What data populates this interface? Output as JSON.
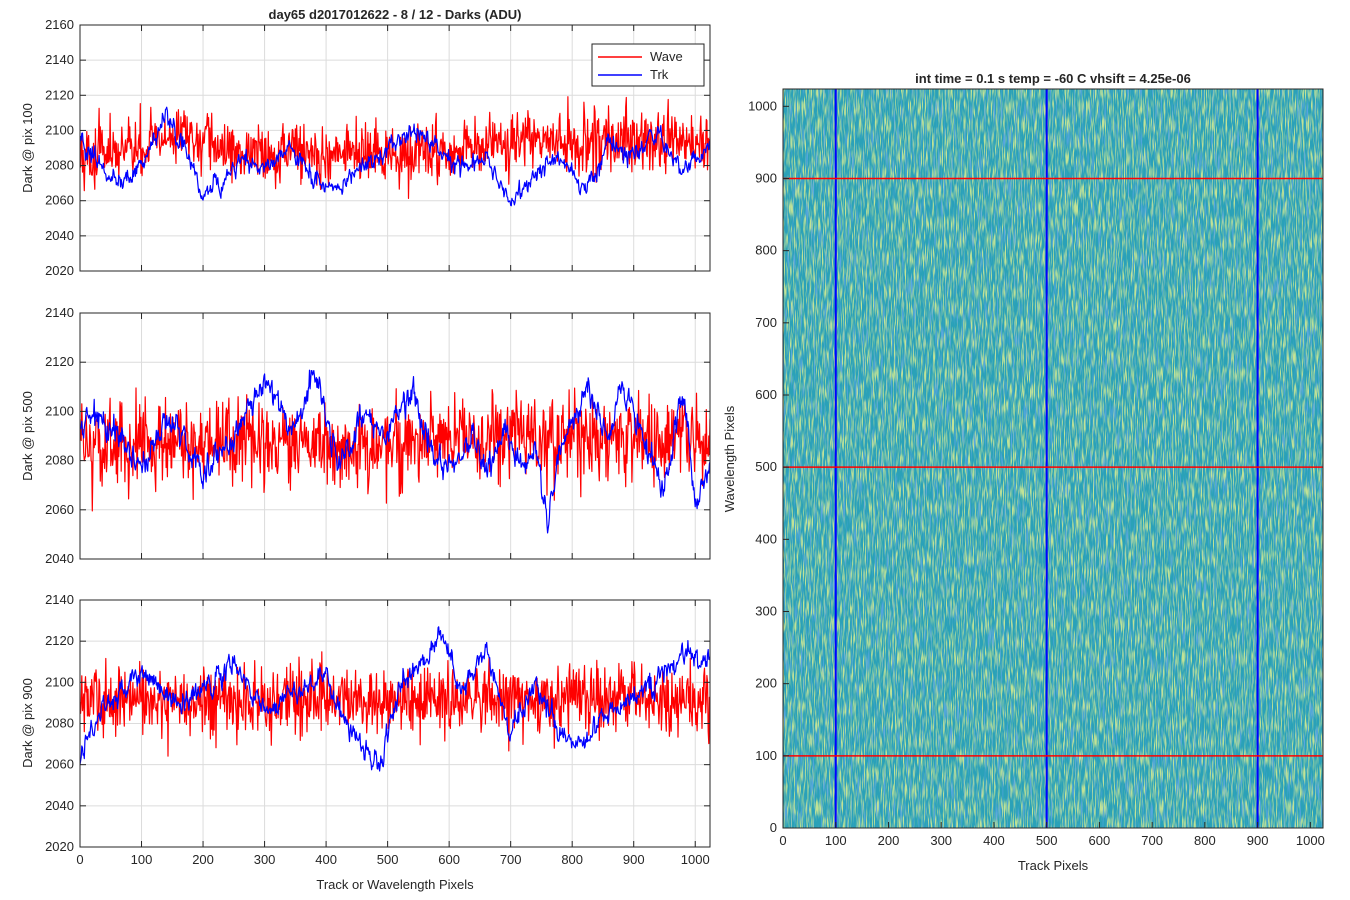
{
  "figure_title": "day65 d2017012622 - 8 / 12 - Darks (ADU)",
  "chart_data": [
    {
      "type": "line",
      "title": "day65 d2017012622 - 8 / 12 - Darks (ADU)",
      "xlabel": "",
      "ylabel": "Dark @ pix 100",
      "xlim": [
        0,
        1024
      ],
      "ylim": [
        2020,
        2160
      ],
      "xticks": [
        0,
        100,
        200,
        300,
        400,
        500,
        600,
        700,
        800,
        900,
        1000
      ],
      "yticks": [
        2020,
        2040,
        2060,
        2080,
        2100,
        2120,
        2140,
        2160
      ],
      "grid": true,
      "legend": {
        "position": "top-right",
        "entries": [
          "Wave",
          "Trk"
        ]
      },
      "series": [
        {
          "name": "Wave",
          "color": "#ff0000",
          "style": "noise",
          "x": [
            0,
            100,
            150,
            250,
            300,
            350,
            400,
            450,
            500,
            550,
            600,
            650,
            700,
            750,
            800,
            850,
            900,
            950,
            1024
          ],
          "values": [
            2085,
            2090,
            2098,
            2088,
            2087,
            2090,
            2085,
            2088,
            2083,
            2088,
            2087,
            2090,
            2092,
            2095,
            2093,
            2095,
            2092,
            2094,
            2090
          ]
        },
        {
          "name": "Trk",
          "color": "#0000ff",
          "style": "smooth",
          "x": [
            0,
            40,
            80,
            110,
            140,
            170,
            200,
            230,
            260,
            300,
            340,
            380,
            420,
            460,
            500,
            540,
            580,
            620,
            660,
            700,
            740,
            780,
            820,
            860,
            900,
            940,
            970,
            1000,
            1024
          ],
          "values": [
            2095,
            2075,
            2072,
            2085,
            2108,
            2090,
            2065,
            2070,
            2085,
            2078,
            2092,
            2072,
            2066,
            2078,
            2090,
            2100,
            2092,
            2078,
            2085,
            2058,
            2075,
            2085,
            2066,
            2092,
            2085,
            2098,
            2078,
            2082,
            2090
          ]
        }
      ]
    },
    {
      "type": "line",
      "title": "",
      "xlabel": "",
      "ylabel": "Dark @ pix 500",
      "xlim": [
        0,
        1024
      ],
      "ylim": [
        2040,
        2140
      ],
      "xticks": [
        0,
        100,
        200,
        300,
        400,
        500,
        600,
        700,
        800,
        900,
        1000
      ],
      "yticks": [
        2040,
        2060,
        2080,
        2100,
        2120,
        2140
      ],
      "grid": true,
      "series": [
        {
          "name": "Wave",
          "color": "#ff0000",
          "style": "noise",
          "x": [
            0,
            100,
            200,
            300,
            400,
            500,
            600,
            700,
            800,
            900,
            1024
          ],
          "values": [
            2085,
            2088,
            2087,
            2086,
            2085,
            2086,
            2088,
            2090,
            2090,
            2088,
            2087
          ]
        },
        {
          "name": "Trk",
          "color": "#0000ff",
          "style": "smooth",
          "x": [
            0,
            30,
            60,
            100,
            150,
            200,
            250,
            300,
            350,
            380,
            420,
            460,
            500,
            540,
            580,
            620,
            640,
            660,
            690,
            720,
            740,
            760,
            780,
            820,
            860,
            880,
            900,
            950,
            980,
            1000,
            1024
          ],
          "values": [
            2090,
            2100,
            2090,
            2078,
            2098,
            2075,
            2090,
            2110,
            2092,
            2118,
            2078,
            2098,
            2090,
            2110,
            2078,
            2080,
            2090,
            2075,
            2092,
            2078,
            2085,
            2055,
            2080,
            2110,
            2090,
            2112,
            2100,
            2068,
            2108,
            2062,
            2078
          ]
        }
      ]
    },
    {
      "type": "line",
      "title": "",
      "xlabel": "Track or Wavelength Pixels",
      "ylabel": "Dark @ pix 900",
      "xlim": [
        0,
        1024
      ],
      "ylim": [
        2020,
        2140
      ],
      "xticks": [
        0,
        100,
        200,
        300,
        400,
        500,
        600,
        700,
        800,
        900,
        1000
      ],
      "yticks": [
        2020,
        2040,
        2060,
        2080,
        2100,
        2120,
        2140
      ],
      "grid": true,
      "series": [
        {
          "name": "Wave",
          "color": "#ff0000",
          "style": "noise",
          "x": [
            0,
            100,
            200,
            300,
            400,
            500,
            600,
            700,
            800,
            900,
            1024
          ],
          "values": [
            2090,
            2092,
            2090,
            2091,
            2092,
            2090,
            2092,
            2091,
            2092,
            2093,
            2092
          ]
        },
        {
          "name": "Trk",
          "color": "#0000ff",
          "style": "smooth",
          "x": [
            0,
            20,
            60,
            100,
            150,
            200,
            250,
            300,
            350,
            400,
            430,
            460,
            490,
            520,
            560,
            590,
            620,
            660,
            700,
            740,
            780,
            810,
            860,
            900,
            940,
            980,
            1024
          ],
          "values": [
            2060,
            2080,
            2095,
            2105,
            2090,
            2095,
            2110,
            2085,
            2095,
            2105,
            2080,
            2068,
            2060,
            2100,
            2110,
            2125,
            2095,
            2115,
            2075,
            2100,
            2075,
            2068,
            2085,
            2092,
            2100,
            2115,
            2110
          ]
        }
      ]
    },
    {
      "type": "heatmap",
      "title": "int time = 0.1 s   temp = -60 C   vhsift = 4.25e-06",
      "xlabel": "Track Pixels",
      "ylabel": "Wavelength Pixels",
      "xlim": [
        0,
        1024
      ],
      "ylim": [
        0,
        1024
      ],
      "xticks": [
        0,
        100,
        200,
        300,
        400,
        500,
        600,
        700,
        800,
        900,
        1000
      ],
      "yticks": [
        0,
        100,
        200,
        300,
        400,
        500,
        600,
        700,
        800,
        900,
        1000
      ],
      "grid": false,
      "colors": {
        "base": "#2aa1b8",
        "high": "#8ac34d",
        "low": "#1a5fc2"
      },
      "marker_lines": [
        {
          "orientation": "vertical",
          "value": 100,
          "color": "#0000ff"
        },
        {
          "orientation": "vertical",
          "value": 500,
          "color": "#0000ff"
        },
        {
          "orientation": "vertical",
          "value": 900,
          "color": "#0000ff"
        },
        {
          "orientation": "horizontal",
          "value": 100,
          "color": "#ff0000"
        },
        {
          "orientation": "horizontal",
          "value": 500,
          "color": "#ff0000"
        },
        {
          "orientation": "horizontal",
          "value": 900,
          "color": "#ff0000"
        }
      ]
    }
  ]
}
